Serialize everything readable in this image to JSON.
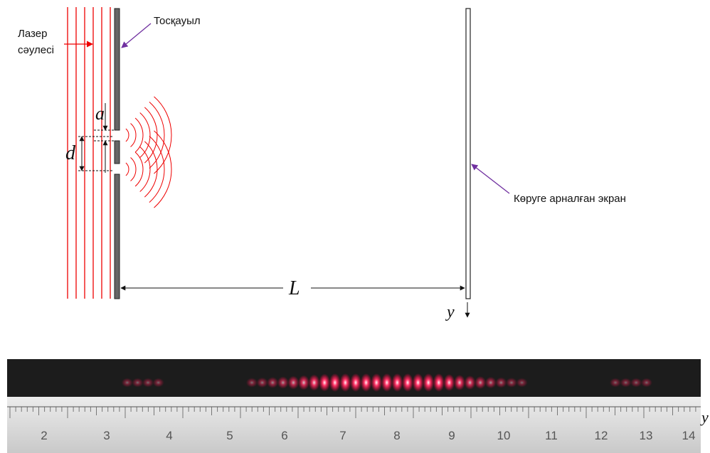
{
  "labels": {
    "laser": [
      "Лазер",
      "сәулесі"
    ],
    "barrier": "Тосқауыл",
    "a": "a",
    "d": "d",
    "L": "L",
    "y": "y",
    "screen": "Көруге арналған экран"
  },
  "ruler": {
    "numbers": [
      2,
      3,
      4,
      5,
      6,
      7,
      8,
      9,
      10,
      11,
      12,
      13,
      14
    ],
    "axis": "y"
  }
}
